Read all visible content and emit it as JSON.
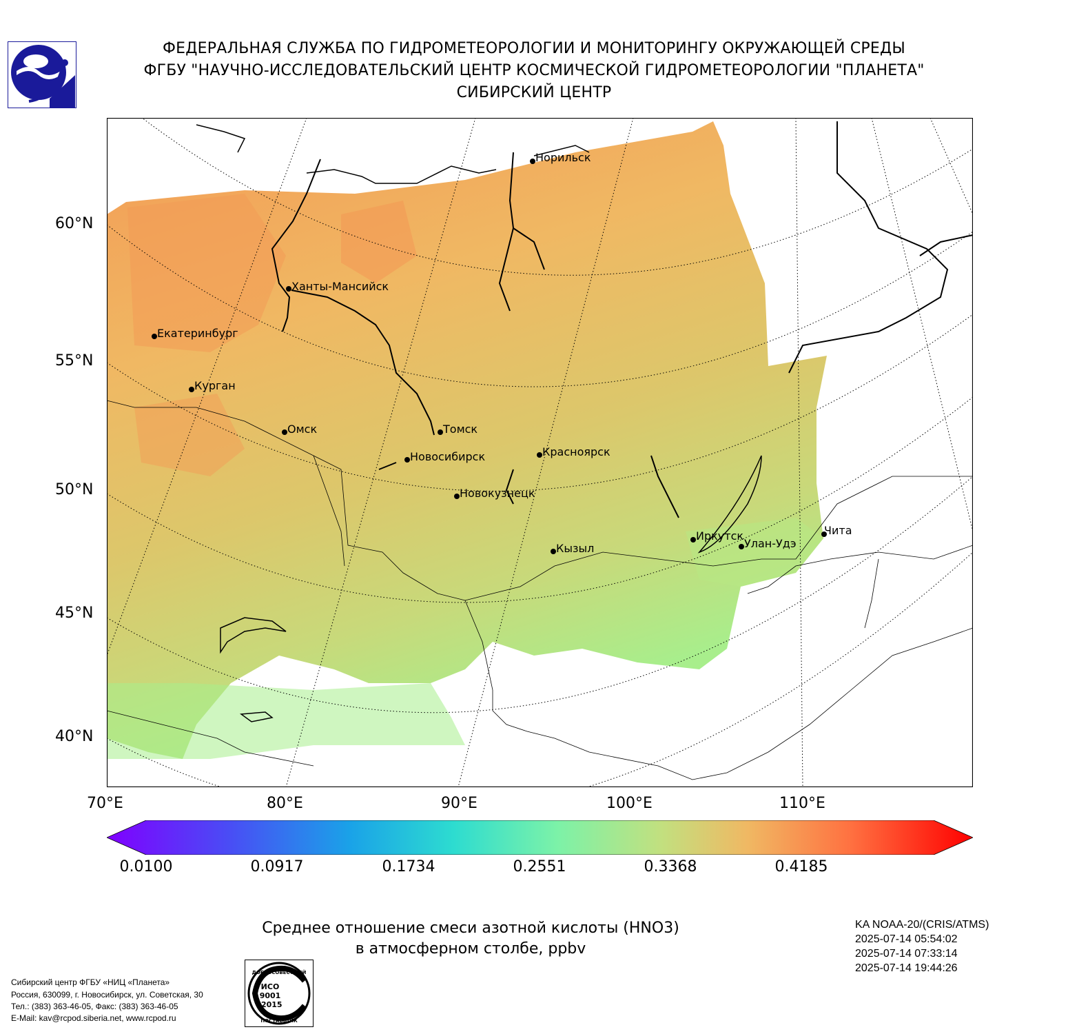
{
  "header": {
    "line1": "ФЕДЕРАЛЬНАЯ СЛУЖБА ПО ГИДРОМЕТЕОРОЛОГИИ И МОНИТОРИНГУ ОКРУЖАЮЩЕЙ СРЕДЫ",
    "line2": "ФГБУ \"НАУЧНО-ИССЛЕДОВАТЕЛЬСКИЙ ЦЕНТР КОСМИЧЕСКОЙ ГИДРОМЕТЕОРОЛОГИИ \"ПЛАНЕТА\"",
    "line3": "СИБИРСКИЙ ЦЕНТР"
  },
  "logo": {
    "icon": "roshydromet-logo",
    "color": "#1a1a9a"
  },
  "map": {
    "lat_labels": [
      "60°N",
      "55°N",
      "50°N",
      "45°N",
      "40°N"
    ],
    "lon_labels": [
      "70°E",
      "80°E",
      "90°E",
      "100°E",
      "110°E"
    ],
    "field_colors": [
      "#f39a55",
      "#f0b863",
      "#dcc76b",
      "#c8d97a",
      "#a8ee8c"
    ],
    "cities": [
      {
        "name": "Норильск"
      },
      {
        "name": "Ханты-Мансийск"
      },
      {
        "name": "Екатеринбург"
      },
      {
        "name": "Курган"
      },
      {
        "name": "Омск"
      },
      {
        "name": "Томск"
      },
      {
        "name": "Новосибирск"
      },
      {
        "name": "Красноярск"
      },
      {
        "name": "Новокузнецк"
      },
      {
        "name": "Кызыл"
      },
      {
        "name": "Иркутск"
      },
      {
        "name": "Улан-Удэ"
      },
      {
        "name": "Чита"
      }
    ]
  },
  "colorbar": {
    "ticks": [
      "0.0100",
      "0.0917",
      "0.1734",
      "0.2551",
      "0.3368",
      "0.4185"
    ],
    "colors": [
      "#8000ff",
      "#4a4cf5",
      "#1aa2e8",
      "#2ddcd0",
      "#7cf2a8",
      "#c2e07f",
      "#f0b863",
      "#ff7040",
      "#ff0000"
    ]
  },
  "caption": {
    "line1": "Среднее отношение смеси азотной кислоты (HNO3)",
    "line2": "в атмосферном столбе, ppbv"
  },
  "satellite": {
    "name": "KA NOAA-20/(CRIS/ATMS)",
    "times": [
      "2025-07-14 05:54:02",
      "2025-07-14 07:33:14",
      "2025-07-14 19:44:26"
    ]
  },
  "contacts": [
    "Сибирский центр ФГБУ «НИЦ «Планета»",
    "Россия, 630099, г. Новосибирск, ул. Советская, 30",
    "Тел.: (383) 363-46-05, Факс: (383) 363-46-05",
    "E-Mail: kav@rcpod.siberia.net, www.rcpod.ru"
  ],
  "iso_badge": {
    "top": "ДОБРОСОВЕСТНЫЙ",
    "iso": "ИСО",
    "num": "9001",
    "year": "-2015",
    "bottom": "ПОСТАВЩИК"
  }
}
